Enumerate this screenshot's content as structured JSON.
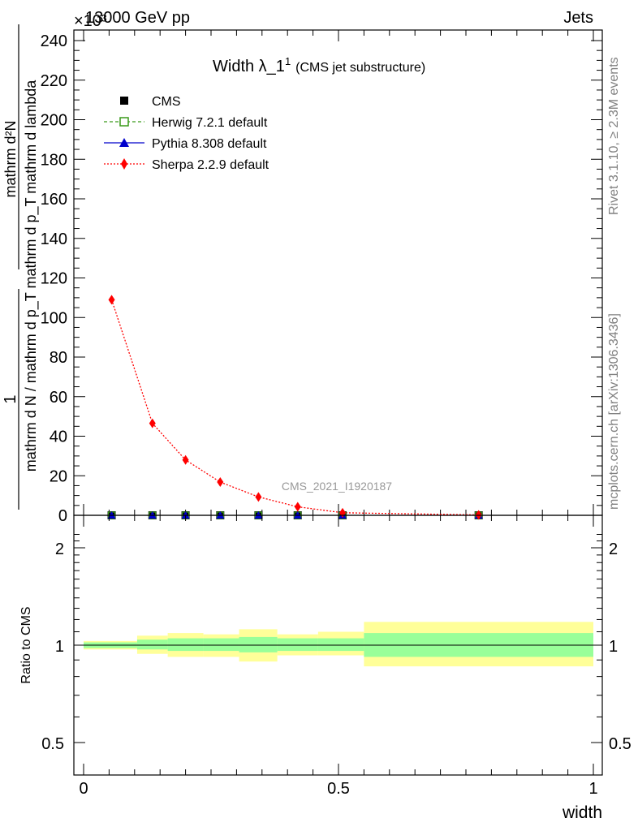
{
  "header": {
    "energy": "13000 GeV pp",
    "process": "Jets",
    "exponent": "×10³"
  },
  "side_labels": {
    "rivet": "Rivet 3.1.10, ≥ 2.3M events",
    "mcplots": "mcplots.cern.ch [arXiv:1306.3436]"
  },
  "main_plot": {
    "title_main": "Width λ_1",
    "title_sup": "1",
    "title_sub": "(CMS jet substructure)",
    "ylabel_line1": "1",
    "ylabel_line2": "mathrm d N / mathrm d p_T mathrm d p_T mathrm d lambda",
    "ylabel_top": "mathrm d²N",
    "watermark": "CMS_2021_I1920187",
    "y_ticks": [
      "0",
      "20",
      "40",
      "60",
      "80",
      "100",
      "120",
      "140",
      "160",
      "180",
      "200",
      "220",
      "240"
    ],
    "legend": [
      {
        "label": "CMS",
        "marker": "square-filled",
        "color": "#000000"
      },
      {
        "label": "Herwig 7.2.1 default",
        "marker": "square-open",
        "color": "#3a9a1a"
      },
      {
        "label": "Pythia 8.308 default",
        "marker": "triangle",
        "color": "#0000cc"
      },
      {
        "label": "Sherpa 2.2.9 default",
        "marker": "diamond",
        "color": "#ff0000"
      }
    ]
  },
  "ratio_plot": {
    "ylabel": "Ratio to CMS",
    "y_ticks": [
      "0.5",
      "1",
      "2"
    ],
    "x_ticks": [
      "0",
      "0.5",
      "1"
    ],
    "xlabel": "width"
  },
  "colors": {
    "sherpa": "#ff0000",
    "herwig": "#3a9a1a",
    "pythia": "#0000cc",
    "band_stat": "#99ff99",
    "band_total": "#ffff99",
    "watermark": "#999999"
  },
  "chart_data": [
    {
      "type": "line",
      "xlabel": "width",
      "ylabel": "1 / (mathrm d N / mathrm d p_T) mathrm d²N / (mathrm d p_T mathrm d lambda)",
      "ylim": [
        0,
        245
      ],
      "xlim": [
        -0.02,
        1.02
      ],
      "y_scale_factor": "×10³",
      "series": [
        {
          "name": "CMS",
          "x": [
            0.055,
            0.135,
            0.2,
            0.268,
            0.343,
            0.42,
            0.508,
            0.775
          ],
          "y": [
            0.0,
            0.0,
            0.0,
            0.0,
            0.0,
            0.0,
            0.0,
            0.0
          ]
        },
        {
          "name": "Herwig 7.2.1 default",
          "x": [
            0.055,
            0.135,
            0.2,
            0.268,
            0.343,
            0.42,
            0.508,
            0.775
          ],
          "y": [
            0.0,
            0.0,
            0.0,
            0.0,
            0.0,
            0.0,
            0.0,
            0.0
          ]
        },
        {
          "name": "Pythia 8.308 default",
          "x": [
            0.055,
            0.135,
            0.2,
            0.268,
            0.343,
            0.42,
            0.508,
            0.775
          ],
          "y": [
            0.0,
            0.0,
            0.0,
            0.0,
            0.0,
            0.0,
            0.0,
            0.0
          ]
        },
        {
          "name": "Sherpa 2.2.9 default",
          "x": [
            0.055,
            0.135,
            0.2,
            0.268,
            0.343,
            0.42,
            0.508,
            0.775
          ],
          "y": [
            109,
            46.5,
            28.0,
            16.8,
            9.3,
            4.3,
            1.3,
            0.2
          ]
        }
      ]
    },
    {
      "type": "area",
      "ylabel": "Ratio to CMS",
      "xlabel": "width",
      "ylim": [
        0.4,
        2.4
      ],
      "y_scale": "log",
      "reference_line": 1,
      "bins": [
        {
          "xlow": 0.0,
          "xhigh": 0.105,
          "stat": [
            0.98,
            1.02
          ],
          "total": [
            0.97,
            1.03
          ]
        },
        {
          "xlow": 0.105,
          "xhigh": 0.165,
          "stat": [
            0.97,
            1.04
          ],
          "total": [
            0.94,
            1.07
          ]
        },
        {
          "xlow": 0.165,
          "xhigh": 0.235,
          "stat": [
            0.96,
            1.05
          ],
          "total": [
            0.92,
            1.09
          ]
        },
        {
          "xlow": 0.235,
          "xhigh": 0.305,
          "stat": [
            0.96,
            1.05
          ],
          "total": [
            0.92,
            1.08
          ]
        },
        {
          "xlow": 0.305,
          "xhigh": 0.38,
          "stat": [
            0.95,
            1.06
          ],
          "total": [
            0.89,
            1.12
          ]
        },
        {
          "xlow": 0.38,
          "xhigh": 0.46,
          "stat": [
            0.96,
            1.05
          ],
          "total": [
            0.93,
            1.08
          ]
        },
        {
          "xlow": 0.46,
          "xhigh": 0.55,
          "stat": [
            0.96,
            1.05
          ],
          "total": [
            0.93,
            1.1
          ]
        },
        {
          "xlow": 0.55,
          "xhigh": 1.0,
          "stat": [
            0.92,
            1.09
          ],
          "total": [
            0.86,
            1.18
          ]
        }
      ]
    }
  ]
}
